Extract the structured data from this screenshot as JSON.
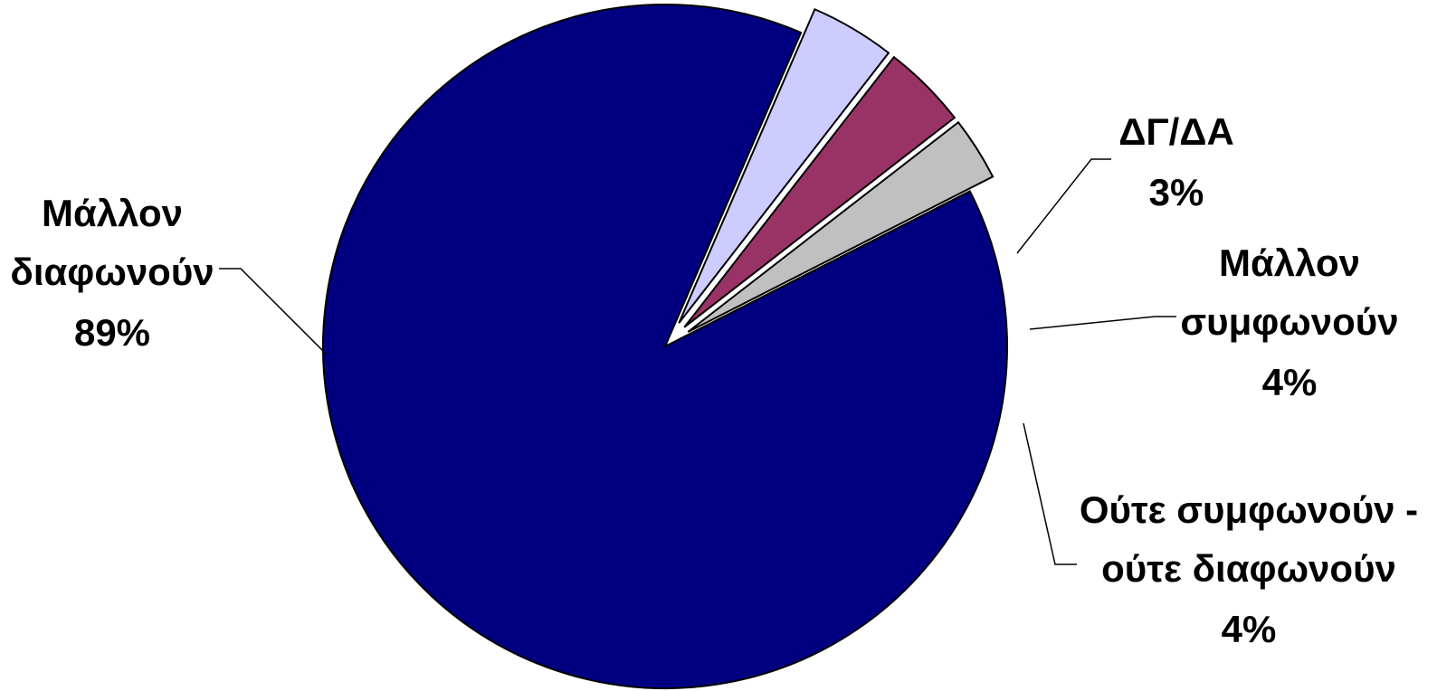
{
  "chart_data": {
    "type": "pie",
    "title": "",
    "slices": [
      {
        "label_lines": [
          "Μάλλον",
          "διαφωνούν"
        ],
        "value_label": "89%",
        "value": 89,
        "color": "#000080"
      },
      {
        "label_lines": [
          "Ούτε συμφωνούν -",
          "ούτε διαφωνούν"
        ],
        "value_label": "4%",
        "value": 4,
        "color": "#CCCCFF"
      },
      {
        "label_lines": [
          "Μάλλον",
          "συμφωνούν"
        ],
        "value_label": "4%",
        "value": 4,
        "color": "#993366"
      },
      {
        "label_lines": [
          "ΔΓ/ΔΑ"
        ],
        "value_label": "3%",
        "value": 3,
        "color": "#C0C0C0"
      }
    ]
  }
}
